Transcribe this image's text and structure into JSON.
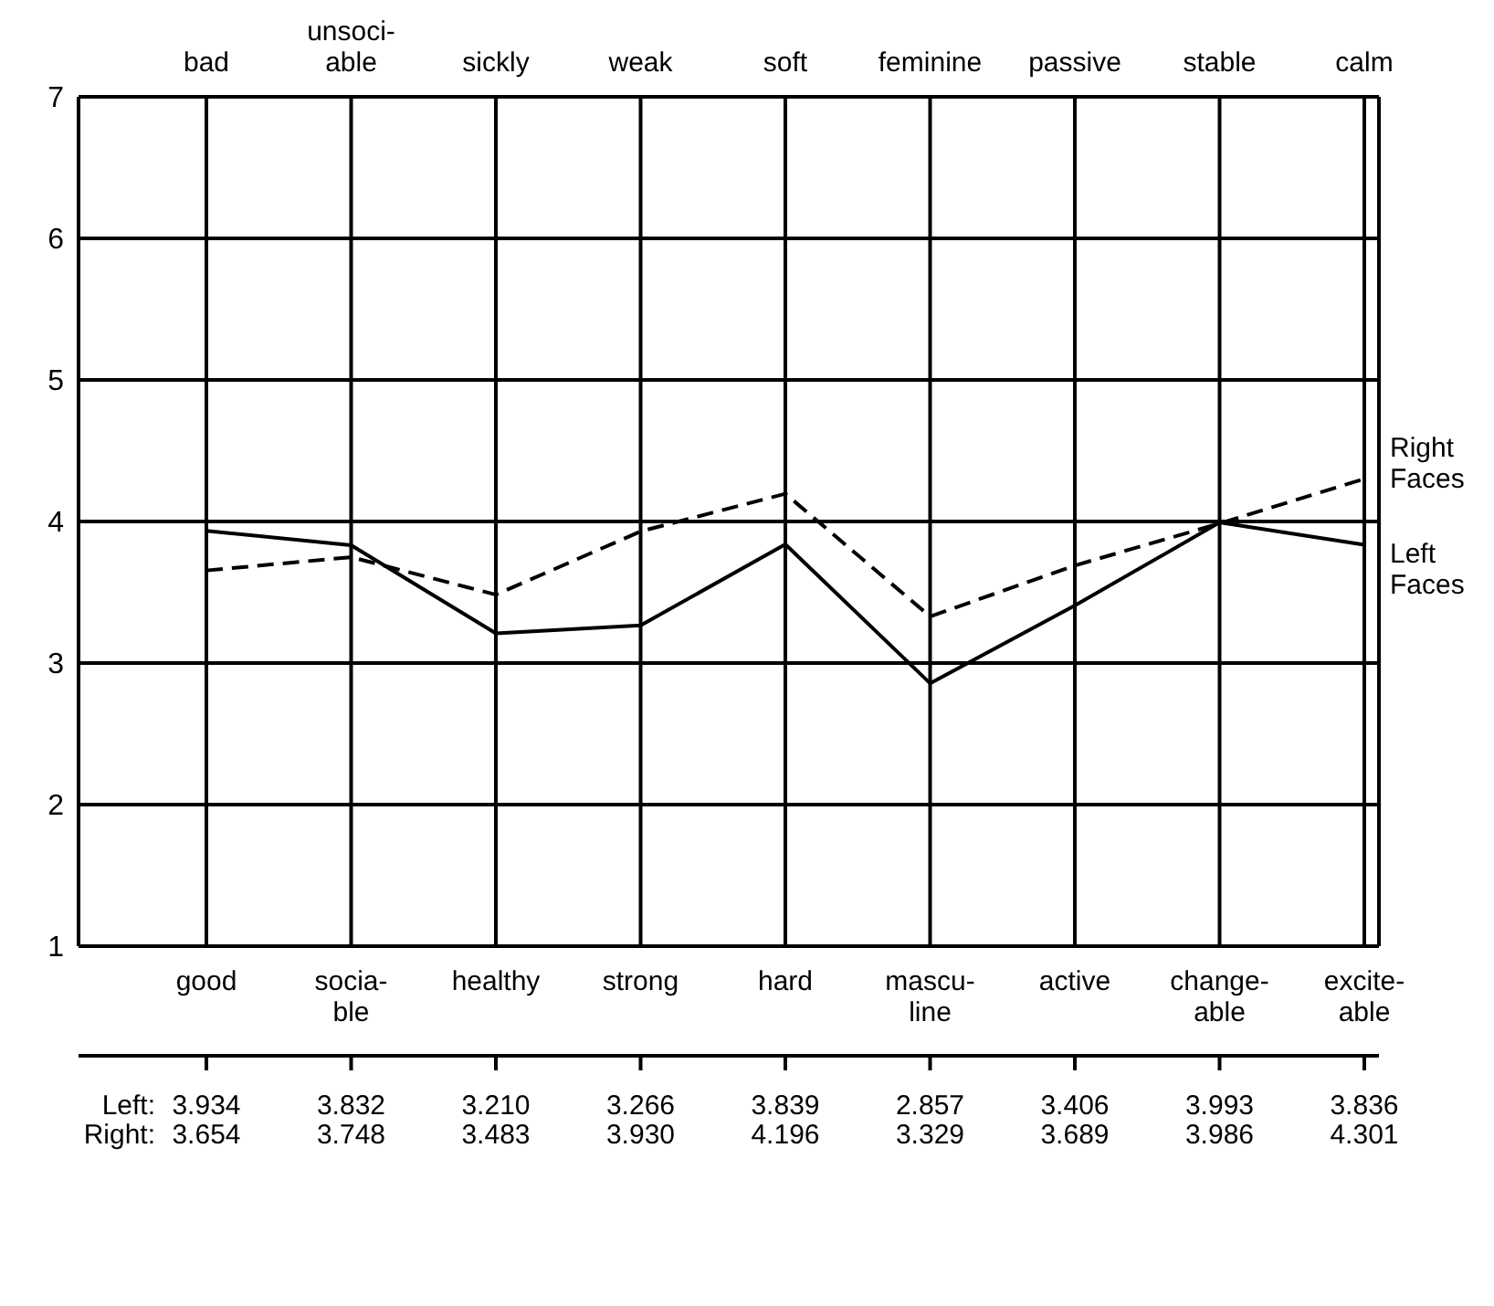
{
  "chart_data": {
    "type": "line",
    "categories": [
      "good",
      "socia-ble",
      "healthy",
      "strong",
      "hard",
      "mascu-line",
      "active",
      "change-able",
      "excite-able"
    ],
    "series": [
      {
        "name": "Left Faces",
        "color": "#000000",
        "line_style": "solid",
        "values": [
          3.934,
          3.832,
          3.21,
          3.266,
          3.839,
          2.857,
          3.406,
          3.993,
          3.836
        ],
        "value_labels": [
          "3.934",
          "3.832",
          "3.210",
          "3.266",
          "3.839",
          "2.857",
          "3.406",
          "3.993",
          "3.836"
        ]
      },
      {
        "name": "Right Faces",
        "color": "#000000",
        "line_style": "dashed",
        "values": [
          3.654,
          3.748,
          3.483,
          3.93,
          4.196,
          3.329,
          3.689,
          3.986,
          4.301
        ],
        "value_labels": [
          "3.654",
          "3.748",
          "3.483",
          "3.930",
          "4.196",
          "3.329",
          "3.689",
          "3.986",
          "4.301"
        ]
      }
    ],
    "annotations": [
      "bad",
      "unsoci-able",
      "sickly",
      "weak",
      "soft",
      "feminine",
      "passive",
      "stable",
      "calm",
      "Left:",
      "Right:"
    ],
    "ylim": [
      1,
      7
    ],
    "yticks": [
      1,
      2,
      3,
      4,
      5,
      6,
      7
    ],
    "grid": true,
    "marker": "none"
  }
}
